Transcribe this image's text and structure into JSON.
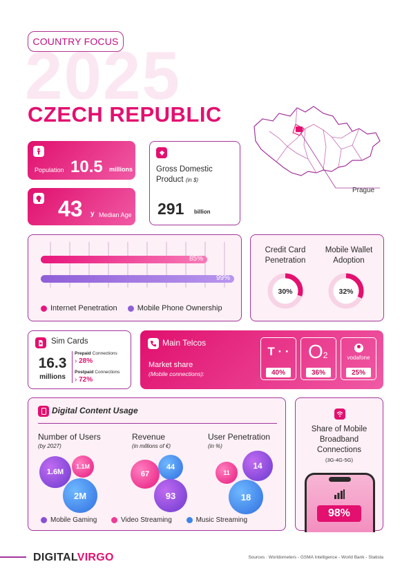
{
  "header": {
    "tag": "COUNTRY FOCUS",
    "year": "2025",
    "country": "CZECH REPUBLIC",
    "map_label": "Prague"
  },
  "population": {
    "label": "Population",
    "value": "10.5",
    "unit": "millions"
  },
  "median_age": {
    "value": "43",
    "suffix": "y",
    "label": "Median Age"
  },
  "gdp": {
    "title": "Gross Domestic Product",
    "unit_note": "(in $)",
    "value": "291",
    "unit": "billion"
  },
  "penetration_bars": {
    "bars": [
      {
        "name": "Internet Penetration",
        "label": "85%",
        "fraction": 0.85,
        "color": "#e8167c"
      },
      {
        "name": "Mobile Phone Ownership",
        "label": "99%",
        "fraction": 0.99,
        "color": "#8f5fd8"
      }
    ]
  },
  "adoption": [
    {
      "title_line1": "Credit Card",
      "title_line2": "Penetration",
      "label": "30%",
      "fraction": 0.3
    },
    {
      "title_line1": "Mobile Wallet",
      "title_line2": "Adoption",
      "label": "32%",
      "fraction": 0.32
    }
  ],
  "sim": {
    "title": "Sim Cards",
    "value": "16.3",
    "unit": "millions",
    "prepaid_label": "Prepaid",
    "prepaid_suffix": "Connections",
    "prepaid_value": "28%",
    "postpaid_label": "Postpaid",
    "postpaid_suffix": "Connections",
    "postpaid_value": "72%"
  },
  "telcos": {
    "title": "Main Telcos",
    "market_share": "Market share",
    "note": "(Mobile connections):",
    "operators": [
      {
        "logo_text": "T · ·",
        "share": "40%"
      },
      {
        "logo_text": "O",
        "logo_sub": "2",
        "share": "36%"
      },
      {
        "logo_text": "vodafone",
        "share": "25%"
      }
    ]
  },
  "digital_content": {
    "title": "Digital Content Usage",
    "columns": [
      {
        "title": "Number of Users",
        "note": "(by 2027)"
      },
      {
        "title": "Revenue",
        "note": "(in millions of €)"
      },
      {
        "title": "User Penetration",
        "note": "(in %)"
      }
    ],
    "bubbles": {
      "users": {
        "gaming": "1.6M",
        "video": "1.1M",
        "music": "2M"
      },
      "revenue": {
        "video": "67",
        "music": "44",
        "gaming": "93"
      },
      "penetration": {
        "video": "11",
        "gaming": "14",
        "music": "18"
      }
    },
    "legend": [
      "Mobile Gaming",
      "Video Streaming",
      "Music Streaming"
    ],
    "colors": {
      "gaming": "#8a4fd6",
      "video": "#ec3d95",
      "music": "#3b86e8"
    }
  },
  "mobile_broadband": {
    "title_line1": "Share of Mobile",
    "title_line2": "Broadband",
    "title_line3": "Connections",
    "note": "(3G-4G-5G)",
    "value": "98%"
  },
  "footer": {
    "brand_a": "DIGITAL",
    "brand_b": "VIRGO",
    "sources": "Sources : Worldometers - GSMA Intelligence - World Bank - Statista"
  },
  "colors": {
    "accent": "#e3106f",
    "purple": "#a2339c"
  }
}
